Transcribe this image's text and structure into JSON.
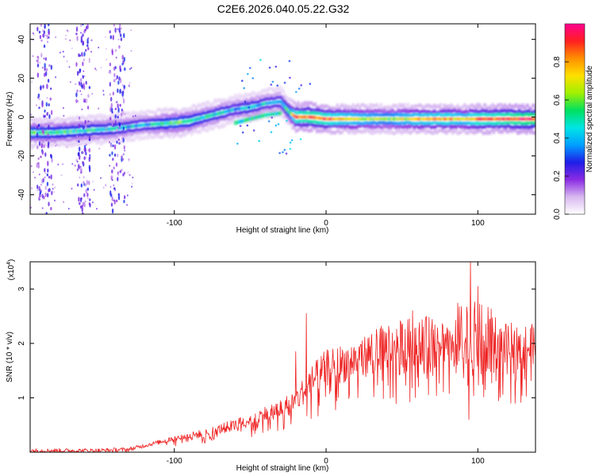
{
  "figure": {
    "title": "C2E6.2026.040.05.22.G32"
  },
  "chart_data": [
    {
      "type": "heatmap",
      "title": "C2E6.2026.040.05.22.G32",
      "xlabel": "Height of straight line (km)",
      "ylabel": "Frequency (Hz)",
      "xlim": [
        -195,
        138
      ],
      "ylim": [
        -50,
        48
      ],
      "x_ticks": [
        -100,
        0,
        100
      ],
      "y_ticks": [
        -40,
        -20,
        0,
        20,
        40
      ],
      "colorbar": {
        "label": "Normalized spectral amplitude",
        "range": [
          0,
          1
        ],
        "ticks": [
          "0.0",
          "0.2",
          "0.4",
          "0.6",
          "0.8"
        ],
        "colors": [
          "#ffffff",
          "#d8b8f0",
          "#8a2be2",
          "#1e1ee8",
          "#00a0ff",
          "#00e5e5",
          "#00e060",
          "#a0f000",
          "#ffe000",
          "#ff9000",
          "#ff2020",
          "#ff0090"
        ]
      },
      "ridge": {
        "x": [
          -195,
          -180,
          -160,
          -140,
          -120,
          -100,
          -90,
          -80,
          -70,
          -60,
          -50,
          -40,
          -30,
          -25,
          -20,
          -10,
          0,
          20,
          40,
          60,
          80,
          90,
          100,
          110,
          120,
          138
        ],
        "frequency": [
          -8,
          -8,
          -7,
          -6,
          -4,
          -3,
          -2,
          0,
          2,
          4,
          5,
          7,
          8,
          3,
          0,
          0,
          -1,
          -1,
          -1,
          -1,
          -1,
          -1,
          -1,
          -1,
          -1,
          -1
        ],
        "amplitude": [
          0.55,
          0.5,
          0.5,
          0.45,
          0.4,
          0.55,
          0.5,
          0.45,
          0.45,
          0.4,
          0.45,
          0.4,
          0.4,
          0.5,
          0.85,
          0.9,
          0.85,
          0.7,
          0.6,
          0.75,
          0.8,
          0.7,
          0.85,
          0.85,
          0.9,
          0.95
        ]
      },
      "lower_branch": {
        "x": [
          -60,
          -50,
          -40,
          -30
        ],
        "frequency": [
          -3,
          -1,
          1,
          2
        ]
      }
    },
    {
      "type": "line",
      "xlabel": "Height of straight line (km)",
      "ylabel": "SNR (10 * v/v)",
      "yscale_label": "(x10",
      "yscale_exp": "4",
      "xlim": [
        -195,
        138
      ],
      "ylim": [
        0,
        3.5
      ],
      "x_ticks": [
        -100,
        0,
        100
      ],
      "y_ticks": [
        1,
        2,
        3
      ],
      "color": "#ee2222",
      "envelope": {
        "x": [
          -195,
          -150,
          -130,
          -120,
          -100,
          -80,
          -60,
          -40,
          -30,
          -20,
          -10,
          0,
          20,
          40,
          60,
          80,
          90,
          95,
          100,
          105,
          110,
          120,
          138
        ],
        "y": [
          0.03,
          0.03,
          0.05,
          0.12,
          0.25,
          0.35,
          0.5,
          0.7,
          0.8,
          0.95,
          1.3,
          1.55,
          1.7,
          1.95,
          2.05,
          2.05,
          2.05,
          2.05,
          2.05,
          2.0,
          1.95,
          1.95,
          1.93
        ]
      },
      "spikes": [
        {
          "x": -13,
          "y": 2.55
        },
        {
          "x": -20,
          "y": 1.85
        },
        {
          "x": 57,
          "y": 2.6
        },
        {
          "x": 95,
          "y": 3.5
        },
        {
          "x": 94,
          "y": 0.6
        },
        {
          "x": 100,
          "y": 3.05
        },
        {
          "x": 108,
          "y": 2.45
        }
      ]
    }
  ]
}
